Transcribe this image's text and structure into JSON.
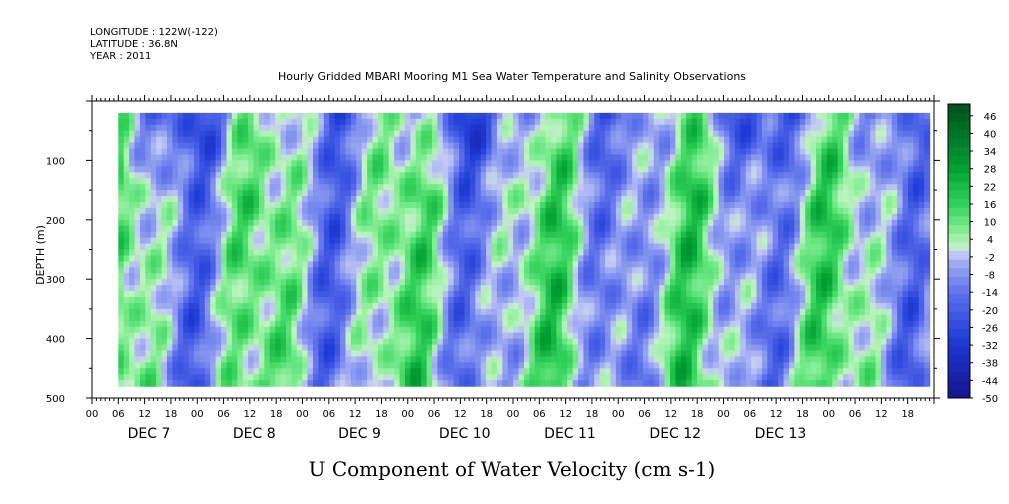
{
  "chart_data": {
    "type": "heatmap",
    "header_lines": [
      "LONGITUDE : 122W(-122)",
      "LATITUDE : 36.8N",
      "YEAR : 2011"
    ],
    "title": "Hourly Gridded MBARI Mooring M1 Sea Water Temperature and Salinity Observations",
    "xlabel": "U Component of Water Velocity (cm s-1)",
    "ylabel": "DEPTH (m)",
    "ylim": [
      500,
      0
    ],
    "y_ticks": [
      100,
      200,
      300,
      400,
      500
    ],
    "x_hour_ticks": [
      "00",
      "06",
      "12",
      "18",
      "00",
      "06",
      "12",
      "18",
      "00",
      "06",
      "12",
      "18",
      "00",
      "06",
      "12",
      "18",
      "00",
      "06",
      "12",
      "18",
      "00",
      "06",
      "12",
      "18",
      "00",
      "06",
      "12",
      "18",
      "00",
      "06",
      "12",
      "18"
    ],
    "x_day_labels": [
      "DEC 7",
      "DEC 8",
      "DEC 9",
      "DEC 10",
      "DEC 11",
      "DEC 12",
      "DEC 13"
    ],
    "colorbar": {
      "labels": [
        "46",
        "40",
        "34",
        "28",
        "22",
        "16",
        "10",
        "4",
        "-2",
        "-8",
        "-14",
        "-20",
        "-26",
        "-32",
        "-38",
        "-44",
        "-50"
      ],
      "range": [
        -50,
        50
      ]
    },
    "data_depth_range_m": [
      20,
      480
    ],
    "data_time_range": [
      "DEC 7 06",
      "DEC 13 23"
    ]
  },
  "colors": {
    "positive_strong": "#00a030",
    "positive_light": "#66ee80",
    "near_zero": "#c8f0c8",
    "negative_light": "#9aa8f0",
    "negative_strong": "#2040d8"
  }
}
